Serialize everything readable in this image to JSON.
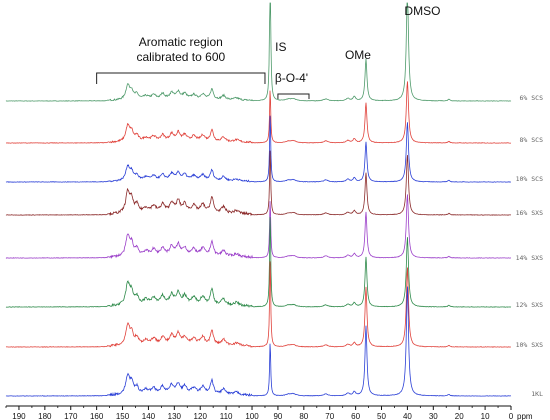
{
  "chart_data": {
    "type": "line",
    "xlabel": "ppm",
    "xlim": [
      195,
      0
    ],
    "x_ticks": [
      190,
      180,
      170,
      160,
      150,
      140,
      130,
      120,
      110,
      100,
      90,
      80,
      70,
      60,
      50,
      40,
      30,
      20,
      10,
      0
    ],
    "grid": false,
    "annotations": {
      "aromatic_line1": "Aromatic region",
      "aromatic_line2": "calibrated to 600",
      "aromatic_range_ppm": [
        160,
        95
      ],
      "is_label": "IS",
      "is_ppm": 93,
      "beta_label": "β-O-4'",
      "beta_range_ppm": [
        90,
        78
      ],
      "ome_label": "OMe",
      "ome_ppm": 56,
      "dmso_label": "DMSO",
      "dmso_ppm": 40
    },
    "series": [
      {
        "name": "6% SCS",
        "color": "#4e9a6a",
        "is_height": 150,
        "ome_height": 42,
        "dmso_height": 110,
        "aromatic_scale": 1.0
      },
      {
        "name": "8% SCS",
        "color": "#e0413a",
        "is_height": 55,
        "ome_height": 40,
        "dmso_height": 62,
        "aromatic_scale": 1.1
      },
      {
        "name": "10% SCS",
        "color": "#2a3fd6",
        "is_height": 70,
        "ome_height": 40,
        "dmso_height": 60,
        "aromatic_scale": 1.0
      },
      {
        "name": "16% SXS",
        "color": "#8b2a2a",
        "is_height": 68,
        "ome_height": 42,
        "dmso_height": 60,
        "aromatic_scale": 1.5
      },
      {
        "name": "14% SXS",
        "color": "#9b3fc9",
        "is_height": 60,
        "ome_height": 46,
        "dmso_height": 64,
        "aromatic_scale": 1.4
      },
      {
        "name": "12% SXS",
        "color": "#2e8a4a",
        "is_height": 95,
        "ome_height": 50,
        "dmso_height": 70,
        "aromatic_scale": 1.5
      },
      {
        "name": "10% SXS",
        "color": "#e0413a",
        "is_height": 90,
        "ome_height": 60,
        "dmso_height": 80,
        "aromatic_scale": 1.4
      },
      {
        "name": "1KL",
        "color": "#2a3fd6",
        "is_height": 55,
        "ome_height": 70,
        "dmso_height": 110,
        "aromatic_scale": 1.3
      }
    ]
  }
}
